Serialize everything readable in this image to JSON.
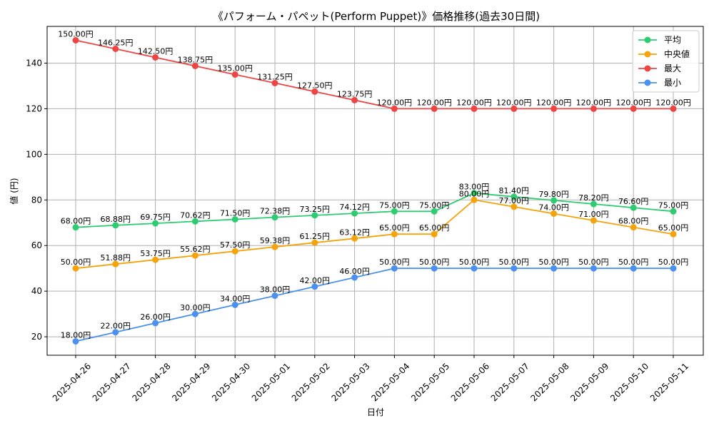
{
  "chart_data": {
    "type": "line",
    "title": "《パフォーム・パペット(Perform Puppet)》価格推移(過去30日間)",
    "xlabel": "日付",
    "ylabel": "値 (円)",
    "ylim": [
      11.9,
      156.1
    ],
    "yticks": [
      20,
      40,
      60,
      80,
      100,
      120,
      140
    ],
    "grid": true,
    "legend_position": "top-right",
    "value_suffix": "円",
    "categories": [
      "2025-04-26",
      "2025-04-27",
      "2025-04-28",
      "2025-04-29",
      "2025-04-30",
      "2025-05-01",
      "2025-05-02",
      "2025-05-03",
      "2025-05-04",
      "2025-05-05",
      "2025-05-06",
      "2025-05-07",
      "2025-05-08",
      "2025-05-09",
      "2025-05-10",
      "2025-05-11"
    ],
    "series": [
      {
        "name": "平均",
        "color": "#2ecc71",
        "values": [
          68.0,
          68.88,
          69.75,
          70.62,
          71.5,
          72.38,
          73.25,
          74.12,
          75.0,
          75.0,
          83.0,
          81.4,
          79.8,
          78.2,
          76.6,
          75.0
        ]
      },
      {
        "name": "中央値",
        "color": "#f5a30a",
        "values": [
          50.0,
          51.88,
          53.75,
          55.62,
          57.5,
          59.38,
          61.25,
          63.12,
          65.0,
          65.0,
          80.0,
          77.0,
          74.0,
          71.0,
          68.0,
          65.0
        ]
      },
      {
        "name": "最大",
        "color": "#ef4444",
        "values": [
          150.0,
          146.25,
          142.5,
          138.75,
          135.0,
          131.25,
          127.5,
          123.75,
          120.0,
          120.0,
          120.0,
          120.0,
          120.0,
          120.0,
          120.0,
          120.0
        ]
      },
      {
        "name": "最小",
        "color": "#4a90f0",
        "values": [
          18.0,
          22.0,
          26.0,
          30.0,
          34.0,
          38.0,
          42.0,
          46.0,
          50.0,
          50.0,
          50.0,
          50.0,
          50.0,
          50.0,
          50.0,
          50.0
        ]
      }
    ]
  }
}
